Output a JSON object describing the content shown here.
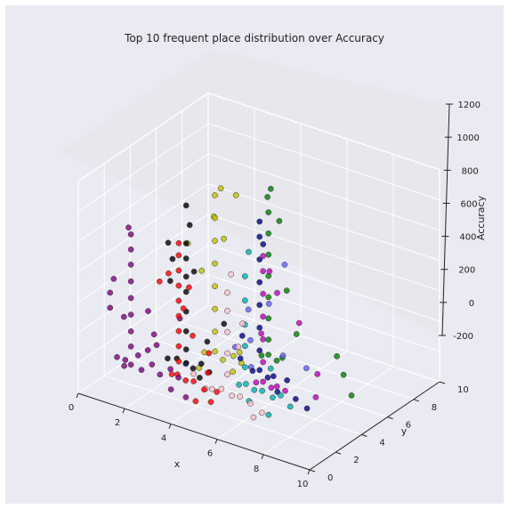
{
  "chart_data": {
    "type": "scatter",
    "projection": "3d",
    "title": "Top 10 frequent place distribution over Accuracy",
    "xlabel": "x",
    "ylabel": "y",
    "zlabel": "Accuracy",
    "xlim": [
      0,
      10
    ],
    "ylim": [
      0,
      10
    ],
    "zlim": [
      -200,
      1200
    ],
    "xticks": [
      "0",
      "2",
      "4",
      "6",
      "8",
      "10"
    ],
    "yticks": [
      "0",
      "2",
      "4",
      "6",
      "8",
      "10"
    ],
    "zticks": [
      "-200",
      "0",
      "200",
      "400",
      "600",
      "800",
      "1000",
      "1200"
    ],
    "grid": true,
    "series": [
      {
        "color": "#800080",
        "points": [
          [
            1.0,
            1.2,
            20
          ],
          [
            1.3,
            1.3,
            10
          ],
          [
            1.6,
            1.2,
            0
          ],
          [
            2.0,
            1.3,
            -20
          ],
          [
            2.4,
            1.4,
            30
          ],
          [
            2.8,
            1.3,
            -10
          ],
          [
            3.2,
            1.4,
            40
          ],
          [
            3.6,
            1.3,
            10
          ],
          [
            1.2,
            1.4,
            -40
          ],
          [
            1.8,
            1.4,
            60
          ],
          [
            1.6,
            2.5,
            20
          ],
          [
            1.7,
            3.0,
            30
          ],
          [
            1.3,
            5.5,
            40
          ],
          [
            1.6,
            1.2,
            120
          ],
          [
            1.6,
            1.2,
            220
          ],
          [
            1.6,
            1.2,
            330
          ],
          [
            1.6,
            1.2,
            440
          ],
          [
            1.6,
            1.2,
            550
          ],
          [
            1.6,
            1.2,
            660
          ],
          [
            1.6,
            1.2,
            760
          ],
          [
            1.6,
            1.2,
            860
          ],
          [
            1.5,
            1.2,
            900
          ],
          [
            0.7,
            1.2,
            330
          ],
          [
            0.7,
            1.2,
            430
          ],
          [
            0.8,
            1.3,
            520
          ],
          [
            1.3,
            1.2,
            300
          ],
          [
            2.4,
            1.1,
            400
          ],
          [
            2.6,
            1.2,
            250
          ],
          [
            4.2,
            0.8,
            -60
          ],
          [
            3.5,
            0.9,
            -50
          ]
        ]
      },
      {
        "color": "#000000",
        "points": [
          [
            2.4,
            2.6,
            0
          ],
          [
            2.8,
            2.6,
            20
          ],
          [
            3.2,
            2.6,
            10
          ],
          [
            3.5,
            2.6,
            -10
          ],
          [
            3.8,
            2.7,
            30
          ],
          [
            4.2,
            2.6,
            0
          ],
          [
            3.2,
            2.6,
            100
          ],
          [
            3.2,
            2.6,
            220
          ],
          [
            3.2,
            2.6,
            350
          ],
          [
            3.2,
            2.6,
            480
          ],
          [
            3.2,
            2.6,
            580
          ],
          [
            3.2,
            2.6,
            700
          ],
          [
            3.2,
            2.6,
            800
          ],
          [
            3.3,
            2.7,
            920
          ],
          [
            3.2,
            2.6,
            1050
          ],
          [
            2.4,
            2.8,
            500
          ],
          [
            2.5,
            2.8,
            650
          ],
          [
            2.2,
            3.0,
            730
          ],
          [
            3.6,
            2.5,
            640
          ],
          [
            4.5,
            3.2,
            300
          ],
          [
            3.9,
            2.4,
            -40
          ],
          [
            4.0,
            2.8,
            180
          ]
        ]
      },
      {
        "color": "#ff0000",
        "points": [
          [
            3.2,
            1.5,
            0
          ],
          [
            3.5,
            1.4,
            20
          ],
          [
            3.8,
            1.5,
            -10
          ],
          [
            4.2,
            1.4,
            10
          ],
          [
            4.6,
            1.5,
            -30
          ],
          [
            5.2,
            1.4,
            -10
          ],
          [
            3.5,
            1.5,
            100
          ],
          [
            3.5,
            1.5,
            200
          ],
          [
            3.5,
            1.5,
            300
          ],
          [
            3.5,
            1.5,
            400
          ],
          [
            3.5,
            1.5,
            500
          ],
          [
            3.5,
            1.5,
            600
          ],
          [
            3.5,
            1.5,
            700
          ],
          [
            3.5,
            1.5,
            800
          ],
          [
            3.5,
            1.5,
            880
          ],
          [
            3.0,
            1.6,
            650
          ],
          [
            4.0,
            1.4,
            620
          ],
          [
            4.8,
            1.5,
            220
          ],
          [
            4.7,
            1.6,
            80
          ],
          [
            2.5,
            1.8,
            560
          ],
          [
            3.7,
            1.5,
            460
          ],
          [
            4.1,
            1.5,
            300
          ],
          [
            5.0,
            1.3,
            -80
          ],
          [
            4.4,
            1.2,
            -100
          ]
        ]
      },
      {
        "color": "#c0c000",
        "points": [
          [
            3.2,
            4.0,
            0
          ],
          [
            3.6,
            4.1,
            20
          ],
          [
            4.0,
            4.0,
            -10
          ],
          [
            4.4,
            4.1,
            30
          ],
          [
            4.8,
            4.0,
            10
          ],
          [
            3.6,
            4.1,
            150
          ],
          [
            3.6,
            4.1,
            300
          ],
          [
            3.6,
            4.1,
            450
          ],
          [
            3.6,
            4.1,
            600
          ],
          [
            3.6,
            4.1,
            750
          ],
          [
            3.6,
            4.1,
            900
          ],
          [
            3.6,
            4.1,
            1050
          ],
          [
            3.8,
            4.2,
            1100
          ],
          [
            4.4,
            4.3,
            1080
          ],
          [
            3.5,
            4.2,
            900
          ],
          [
            4.1,
            3.9,
            800
          ],
          [
            3.2,
            3.8,
            550
          ],
          [
            2.6,
            3.8,
            700
          ],
          [
            3.2,
            3.6,
            -80
          ],
          [
            4.6,
            3.7,
            -40
          ],
          [
            5.0,
            3.5,
            120
          ]
        ]
      },
      {
        "color": "#008000",
        "points": [
          [
            5.0,
            5.2,
            0
          ],
          [
            5.3,
            5.2,
            20
          ],
          [
            5.6,
            5.3,
            -10
          ],
          [
            5.9,
            5.2,
            30
          ],
          [
            5.3,
            5.2,
            120
          ],
          [
            5.3,
            5.2,
            260
          ],
          [
            5.3,
            5.2,
            400
          ],
          [
            5.3,
            5.2,
            540
          ],
          [
            5.3,
            5.2,
            680
          ],
          [
            5.3,
            5.2,
            820
          ],
          [
            5.3,
            5.2,
            960
          ],
          [
            5.2,
            5.3,
            1050
          ],
          [
            5.4,
            5.2,
            1120
          ],
          [
            5.6,
            5.5,
            900
          ],
          [
            6.2,
            5.0,
            500
          ],
          [
            6.4,
            5.4,
            200
          ],
          [
            9.0,
            5.0,
            -50
          ],
          [
            8.2,
            5.3,
            150
          ],
          [
            8.6,
            5.1,
            60
          ]
        ]
      },
      {
        "color": "#00008b",
        "points": [
          [
            5.4,
            3.8,
            0
          ],
          [
            5.7,
            3.8,
            20
          ],
          [
            6.0,
            3.9,
            -20
          ],
          [
            6.3,
            3.8,
            10
          ],
          [
            5.7,
            3.8,
            150
          ],
          [
            5.7,
            3.8,
            300
          ],
          [
            5.7,
            3.8,
            450
          ],
          [
            5.7,
            3.8,
            600
          ],
          [
            5.7,
            3.8,
            750
          ],
          [
            5.7,
            3.8,
            900
          ],
          [
            5.7,
            3.8,
            1000
          ],
          [
            5.8,
            3.9,
            850
          ],
          [
            6.7,
            3.4,
            -50
          ],
          [
            7.0,
            3.6,
            30
          ],
          [
            7.6,
            3.2,
            -40
          ],
          [
            8.2,
            3.0,
            -60
          ],
          [
            4.9,
            3.9,
            200
          ],
          [
            5.1,
            3.4,
            90
          ]
        ]
      },
      {
        "color": "#6060ff",
        "points": [
          [
            4.2,
            4.6,
            50
          ],
          [
            4.8,
            4.7,
            120
          ],
          [
            5.6,
            4.7,
            400
          ],
          [
            6.0,
            5.2,
            650
          ],
          [
            5.0,
            4.4,
            -30
          ],
          [
            4.6,
            4.9,
            300
          ],
          [
            6.6,
            4.0,
            150
          ],
          [
            7.5,
            4.2,
            100
          ],
          [
            2.9,
            3.1,
            -40
          ]
        ]
      },
      {
        "color": "#00b0b0",
        "points": [
          [
            5.6,
            2.4,
            0
          ],
          [
            5.9,
            2.4,
            20
          ],
          [
            6.2,
            2.5,
            -10
          ],
          [
            6.6,
            2.4,
            10
          ],
          [
            7.0,
            2.5,
            -20
          ],
          [
            7.4,
            2.4,
            20
          ],
          [
            5.8,
            2.5,
            120
          ],
          [
            5.8,
            2.5,
            260
          ],
          [
            5.8,
            2.5,
            400
          ],
          [
            5.8,
            2.5,
            560
          ],
          [
            5.8,
            2.5,
            720
          ],
          [
            5.9,
            2.6,
            880
          ],
          [
            6.2,
            2.1,
            -60
          ],
          [
            7.1,
            2.0,
            -100
          ],
          [
            6.8,
            2.7,
            150
          ],
          [
            7.7,
            2.6,
            -50
          ]
        ]
      },
      {
        "color": "#c000c0",
        "points": [
          [
            6.0,
            3.0,
            0
          ],
          [
            6.3,
            3.0,
            20
          ],
          [
            6.6,
            3.1,
            -10
          ],
          [
            6.9,
            3.0,
            20
          ],
          [
            7.2,
            3.1,
            0
          ],
          [
            6.3,
            3.0,
            150
          ],
          [
            6.3,
            3.0,
            300
          ],
          [
            6.3,
            3.0,
            450
          ],
          [
            6.3,
            3.0,
            600
          ],
          [
            6.3,
            3.0,
            750
          ],
          [
            6.3,
            3.0,
            850
          ],
          [
            6.3,
            3.5,
            720
          ],
          [
            6.8,
            3.2,
            620
          ],
          [
            7.3,
            4.0,
            400
          ],
          [
            8.2,
            3.8,
            120
          ],
          [
            8.3,
            3.5,
            -10
          ],
          [
            6.0,
            3.4,
            300
          ]
        ]
      },
      {
        "color": "#ffc0cb",
        "points": [
          [
            5.0,
            1.4,
            0
          ],
          [
            5.4,
            1.4,
            20
          ],
          [
            5.8,
            1.5,
            -10
          ],
          [
            6.2,
            1.4,
            10
          ],
          [
            6.6,
            1.5,
            -20
          ],
          [
            5.6,
            1.5,
            120
          ],
          [
            5.6,
            1.5,
            260
          ],
          [
            5.6,
            1.5,
            400
          ],
          [
            5.6,
            1.5,
            540
          ],
          [
            5.6,
            1.5,
            660
          ],
          [
            5.7,
            1.6,
            780
          ],
          [
            4.6,
            1.6,
            -30
          ],
          [
            4.2,
            1.4,
            60
          ],
          [
            6.9,
            1.2,
            -80
          ],
          [
            7.2,
            1.3,
            -40
          ],
          [
            5.9,
            1.8,
            300
          ],
          [
            6.2,
            1.6,
            480
          ]
        ]
      }
    ]
  }
}
